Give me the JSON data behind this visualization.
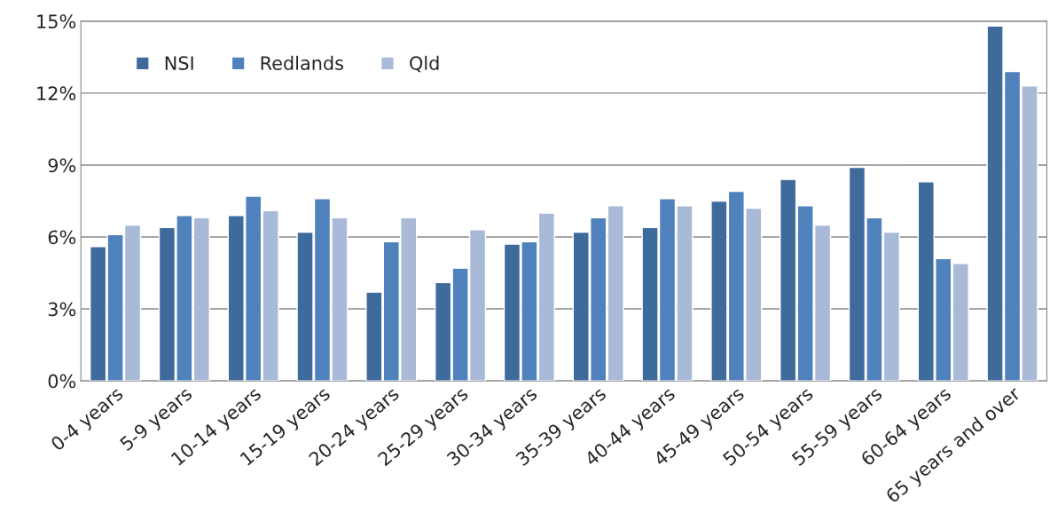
{
  "chart_data": {
    "type": "bar",
    "categories": [
      "0-4 years",
      "5-9 years",
      "10-14 years",
      "15-19 years",
      "20-24 years",
      "25-29 years",
      "30-34 years",
      "35-39 years",
      "40-44 years",
      "45-49 years",
      "50-54 years",
      "55-59 years",
      "60-64 years",
      "65 years and over"
    ],
    "series": [
      {
        "name": "NSI",
        "color": "#3f6a9c",
        "values": [
          5.6,
          6.4,
          6.9,
          6.2,
          3.7,
          4.1,
          5.7,
          6.2,
          6.4,
          7.5,
          8.4,
          8.9,
          8.3,
          14.8
        ]
      },
      {
        "name": "Redlands",
        "color": "#4f81bd",
        "values": [
          6.1,
          6.9,
          7.7,
          7.6,
          5.8,
          4.7,
          5.8,
          6.8,
          7.6,
          7.9,
          7.3,
          6.8,
          5.1,
          12.9
        ]
      },
      {
        "name": "Qld",
        "color": "#a9b9d8",
        "values": [
          6.5,
          6.8,
          7.1,
          6.8,
          6.8,
          6.3,
          7.0,
          7.3,
          7.3,
          7.2,
          6.5,
          6.2,
          4.9,
          12.3
        ]
      }
    ],
    "ylim": [
      0,
      15
    ],
    "yticks": [
      {
        "value": 0,
        "label": "0%"
      },
      {
        "value": 3,
        "label": "3%"
      },
      {
        "value": 6,
        "label": "6%"
      },
      {
        "value": 9,
        "label": "9%"
      },
      {
        "value": 12,
        "label": "12%"
      },
      {
        "value": 15,
        "label": "15%"
      }
    ],
    "grid": "y",
    "legend": "top left"
  }
}
